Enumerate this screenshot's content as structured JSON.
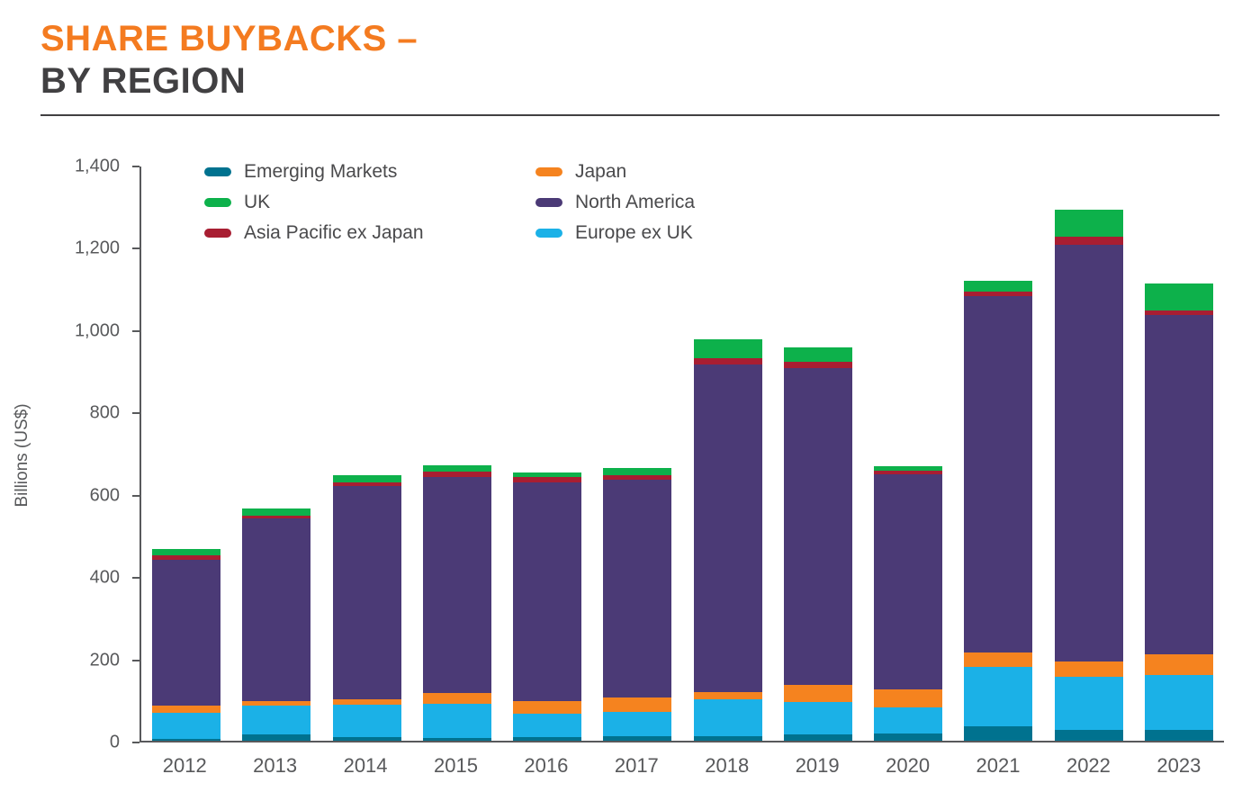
{
  "header": {
    "title_line1": "SHARE BUYBACKS –",
    "title_line2": "BY REGION",
    "title_color": "#F47B20",
    "subtitle_color": "#414042"
  },
  "chart_data": {
    "type": "bar",
    "stacked": true,
    "title": "SHARE BUYBACKS – BY REGION",
    "xlabel": "",
    "ylabel": "Billions (US$)",
    "ylim": [
      0,
      1400
    ],
    "grid": false,
    "legend_position": "top-left",
    "yticks": [
      {
        "label": "0",
        "value": 0
      },
      {
        "label": "200",
        "value": 200
      },
      {
        "label": "400",
        "value": 400
      },
      {
        "label": "600",
        "value": 600
      },
      {
        "label": "800",
        "value": 800
      },
      {
        "label": "1,000",
        "value": 1000
      },
      {
        "label": "1,200",
        "value": 1200
      },
      {
        "label": "1,400",
        "value": 1400
      }
    ],
    "categories": [
      "2012",
      "2013",
      "2014",
      "2015",
      "2016",
      "2017",
      "2018",
      "2019",
      "2020",
      "2021",
      "2022",
      "2023"
    ],
    "series": [
      {
        "name": "Emerging Markets",
        "color": "#00728F",
        "values": [
          5,
          15,
          8,
          6,
          8,
          10,
          12,
          15,
          17,
          35,
          27,
          27
        ]
      },
      {
        "name": "Europe ex UK",
        "color": "#1BB1E7",
        "values": [
          62,
          70,
          80,
          83,
          58,
          60,
          88,
          80,
          63,
          145,
          128,
          133
        ]
      },
      {
        "name": "Japan",
        "color": "#F5831F",
        "values": [
          18,
          12,
          12,
          28,
          30,
          35,
          18,
          40,
          45,
          35,
          38,
          50
        ]
      },
      {
        "name": "North America",
        "color": "#4B3A76",
        "values": [
          355,
          443,
          520,
          523,
          532,
          530,
          797,
          770,
          523,
          865,
          1012,
          825
        ]
      },
      {
        "name": "Asia Pacific ex Japan",
        "color": "#A81E32",
        "values": [
          10,
          8,
          8,
          15,
          12,
          10,
          15,
          15,
          8,
          12,
          20,
          10
        ]
      },
      {
        "name": "UK",
        "color": "#0DB14B",
        "values": [
          15,
          17,
          17,
          15,
          12,
          17,
          45,
          35,
          12,
          25,
          65,
          67
        ]
      }
    ],
    "legend_order": [
      "Emerging Markets",
      "UK",
      "Asia Pacific ex Japan",
      "Japan",
      "North America",
      "Europe ex UK"
    ]
  }
}
